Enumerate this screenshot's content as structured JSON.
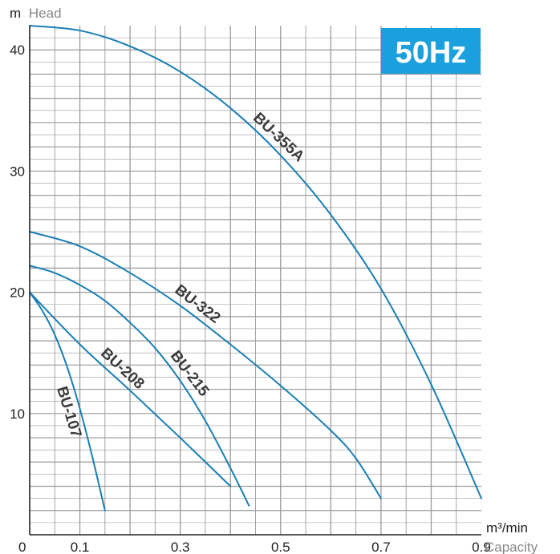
{
  "chart_data": {
    "type": "line",
    "badge": "50Hz",
    "y_unit": "m",
    "ylabel": "Head",
    "x_unit": "m³/min",
    "xlabel": "Capacity",
    "origin_label": "0",
    "xlim": [
      0,
      0.9
    ],
    "ylim": [
      0,
      42
    ],
    "x_ticks": [
      {
        "value": 0.1,
        "label": "0.1"
      },
      {
        "value": 0.3,
        "label": "0.3"
      },
      {
        "value": 0.5,
        "label": "0.5"
      },
      {
        "value": 0.7,
        "label": "0.7"
      },
      {
        "value": 0.9,
        "label": "0.9"
      }
    ],
    "y_ticks": [
      {
        "value": 10,
        "label": "10"
      },
      {
        "value": 20,
        "label": "20"
      },
      {
        "value": 30,
        "label": "30"
      },
      {
        "value": 40,
        "label": "40"
      }
    ],
    "grid": true,
    "colors": {
      "curve": "#1a7fb5",
      "grid": "#9a9a9a",
      "badge": "#1aa0dc",
      "axis_title": "#888888"
    },
    "series": [
      {
        "name": "BU-355A",
        "x": [
          0,
          0.1,
          0.2,
          0.3,
          0.4,
          0.5,
          0.6,
          0.7,
          0.8,
          0.9
        ],
        "y": [
          42,
          41.6,
          40.3,
          38.2,
          35.2,
          31.3,
          26.4,
          20.3,
          12.4,
          3
        ]
      },
      {
        "name": "BU-322",
        "x": [
          0,
          0.1,
          0.2,
          0.3,
          0.4,
          0.5,
          0.6,
          0.65,
          0.7
        ],
        "y": [
          25,
          23.8,
          21.6,
          18.9,
          15.7,
          12.3,
          8.6,
          6.3,
          3
        ]
      },
      {
        "name": "BU-215",
        "x": [
          0,
          0.05,
          0.1,
          0.15,
          0.2,
          0.25,
          0.3,
          0.35,
          0.4,
          0.437
        ],
        "y": [
          22.2,
          21.6,
          20.6,
          19.3,
          17.5,
          15.4,
          12.7,
          9.4,
          5.5,
          2.4
        ]
      },
      {
        "name": "BU-208",
        "x": [
          0,
          0.1,
          0.2,
          0.3,
          0.4
        ],
        "y": [
          20,
          15.7,
          11.9,
          8,
          4
        ]
      },
      {
        "name": "BU-107",
        "x": [
          0,
          0.025,
          0.05,
          0.075,
          0.1,
          0.125,
          0.15
        ],
        "y": [
          20,
          18.5,
          16.5,
          13.8,
          10.4,
          6.4,
          2
        ]
      }
    ]
  }
}
